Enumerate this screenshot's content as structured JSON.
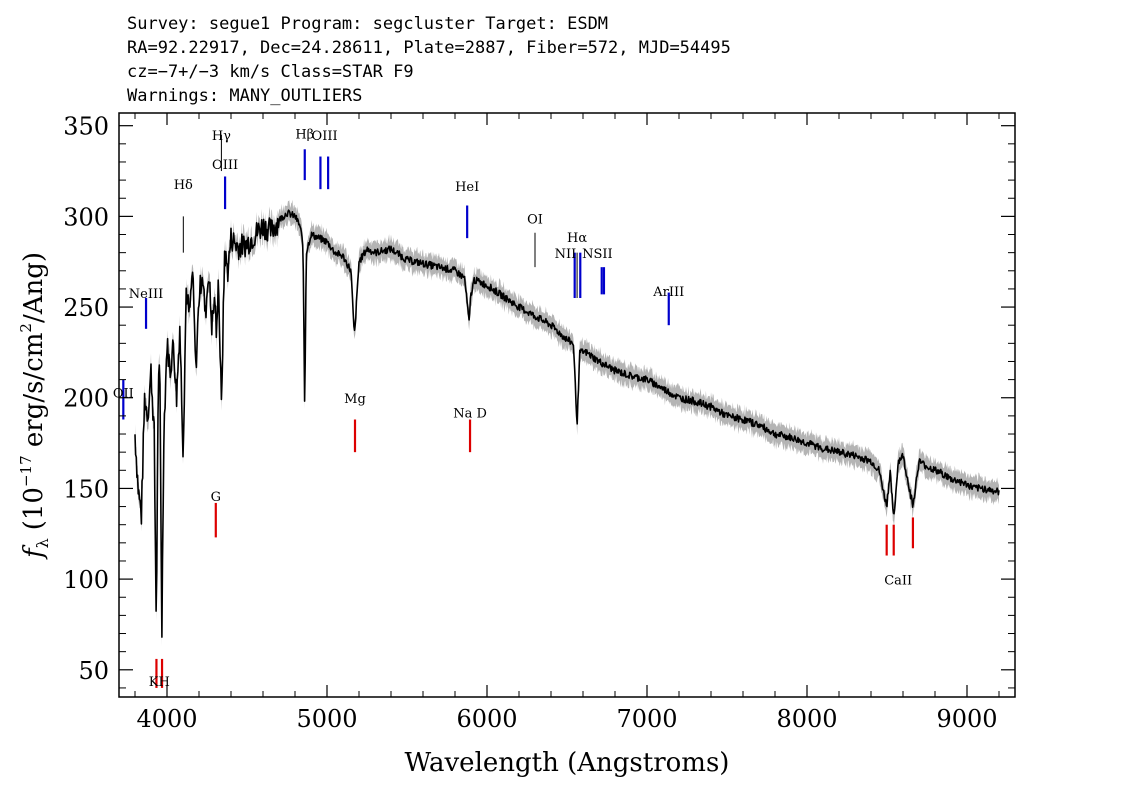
{
  "header": {
    "line1": "Survey: segue1 Program: segcluster Target: ESDM",
    "line2": "RA=92.22917, Dec=24.28611, Plate=2887, Fiber=572, MJD=54495",
    "line3": "cz=−7+/−3 km/s Class=STAR F9",
    "line4": "Warnings: MANY_OUTLIERS"
  },
  "colors": {
    "spectrum": "#000000",
    "error_band": "#b4b4b4",
    "emission_line": "#0000cc",
    "absorption_line": "#dd0000",
    "balmer_line": "#000000"
  },
  "chart_data": {
    "type": "line",
    "title": "",
    "xlabel": "Wavelength (Angstroms)",
    "ylabel": "f_λ (10^-17 erg/s/cm^2/Ang)",
    "ylabel_parts": {
      "f": "f",
      "lambda": "λ",
      "rest": "(10",
      "exp": "−17",
      "units": " erg/s/cm",
      "sq": "2",
      "tail": "/Ang)"
    },
    "xlim": [
      3700,
      9300
    ],
    "ylim": [
      35,
      357
    ],
    "xticks": [
      4000,
      5000,
      6000,
      7000,
      8000,
      9000
    ],
    "yticks": [
      50,
      100,
      150,
      200,
      250,
      300,
      350
    ],
    "series": [
      {
        "x": [
          3800,
          3820,
          3840,
          3860,
          3880,
          3900,
          3920,
          3933,
          3945,
          3955,
          3968,
          3980,
          4000,
          4020,
          4040,
          4060,
          4080,
          4101,
          4120,
          4140,
          4160,
          4180,
          4200,
          4220,
          4240,
          4260,
          4280,
          4300,
          4310,
          4320,
          4340,
          4360,
          4380,
          4400,
          4450,
          4500,
          4550,
          4600,
          4650,
          4700,
          4750,
          4800,
          4830,
          4850,
          4861,
          4870,
          4900,
          4950,
          5000,
          5050,
          5100,
          5150,
          5167,
          5173,
          5183,
          5200,
          5250,
          5300,
          5400,
          5500,
          5600,
          5700,
          5800,
          5860,
          5890,
          5896,
          5920,
          6000,
          6100,
          6200,
          6300,
          6400,
          6500,
          6540,
          6563,
          6580,
          6620,
          6700,
          6800,
          6900,
          7000,
          7100,
          7200,
          7300,
          7400,
          7500,
          7600,
          7700,
          7800,
          7900,
          8000,
          8100,
          8200,
          8300,
          8400,
          8450,
          8498,
          8520,
          8542,
          8570,
          8600,
          8662,
          8700,
          8750,
          8800,
          8850,
          8900,
          8950,
          9000,
          9050,
          9100,
          9150,
          9200
        ],
        "y": [
          180,
          150,
          135,
          200,
          190,
          215,
          180,
          75,
          205,
          215,
          72,
          180,
          230,
          215,
          230,
          200,
          240,
          170,
          260,
          245,
          270,
          215,
          255,
          270,
          245,
          270,
          240,
          255,
          230,
          270,
          195,
          280,
          270,
          288,
          283,
          285,
          290,
          295,
          292,
          298,
          302,
          300,
          295,
          285,
          190,
          280,
          290,
          288,
          286,
          280,
          278,
          270,
          240,
          235,
          250,
          275,
          282,
          280,
          282,
          276,
          274,
          272,
          270,
          266,
          240,
          255,
          265,
          262,
          256,
          250,
          245,
          240,
          232,
          230,
          185,
          225,
          225,
          220,
          215,
          212,
          210,
          205,
          200,
          198,
          195,
          190,
          188,
          185,
          180,
          178,
          175,
          172,
          170,
          168,
          165,
          160,
          140,
          160,
          132,
          165,
          168,
          140,
          165,
          162,
          160,
          158,
          155,
          154,
          152,
          150,
          150,
          149,
          148
        ]
      }
    ],
    "line_markers": [
      {
        "label": "OII",
        "wavelength": 3727,
        "kind": "emission"
      },
      {
        "label": "NeIII",
        "wavelength": 3869,
        "kind": "emission"
      },
      {
        "label": "Hδ",
        "wavelength": 4102,
        "kind": "balmer"
      },
      {
        "label": "Hγ",
        "wavelength": 4340,
        "kind": "balmer"
      },
      {
        "label": "OIII",
        "wavelength": 4363,
        "kind": "emission"
      },
      {
        "label": "Hβ",
        "wavelength": 4861,
        "kind": "emission"
      },
      {
        "label": "OIII",
        "wavelength": 4959,
        "kind": "emission"
      },
      {
        "label": "OIII",
        "wavelength": 5007,
        "kind": "emission"
      },
      {
        "label": "HeI",
        "wavelength": 5876,
        "kind": "emission"
      },
      {
        "label": "OI",
        "wavelength": 6300,
        "kind": "balmer"
      },
      {
        "label": "NII",
        "wavelength": 6548,
        "kind": "emission"
      },
      {
        "label": "Hα",
        "wavelength": 6563,
        "kind": "balmer"
      },
      {
        "label": "NII",
        "wavelength": 6583,
        "kind": "emission"
      },
      {
        "label": "SII",
        "wavelength": 6717,
        "kind": "emission"
      },
      {
        "label": "SII",
        "wavelength": 6731,
        "kind": "emission"
      },
      {
        "label": "ArIII",
        "wavelength": 7136,
        "kind": "emission"
      },
      {
        "label": "K",
        "wavelength": 3934,
        "kind": "absorption"
      },
      {
        "label": "H",
        "wavelength": 3969,
        "kind": "absorption"
      },
      {
        "label": "G",
        "wavelength": 4305,
        "kind": "absorption"
      },
      {
        "label": "Mg",
        "wavelength": 5175,
        "kind": "absorption"
      },
      {
        "label": "Na D",
        "wavelength": 5894,
        "kind": "absorption"
      },
      {
        "label": "CaII",
        "wavelength": 8498,
        "kind": "absorption"
      },
      {
        "label": "CaII",
        "wavelength": 8542,
        "kind": "absorption"
      },
      {
        "label": "CaII",
        "wavelength": 8662,
        "kind": "absorption"
      }
    ],
    "line_labels": [
      {
        "text": "OII",
        "wavelength": 3727,
        "row": "y200"
      },
      {
        "text": "NeIII",
        "wavelength": 3869,
        "row": "y255"
      },
      {
        "text": "Hδ",
        "wavelength": 4102,
        "row": "y315"
      },
      {
        "text": "Hγ",
        "wavelength": 4340,
        "row": "y342"
      },
      {
        "text": "OIII",
        "wavelength": 4363,
        "row": "y326"
      },
      {
        "text": "Hβ",
        "wavelength": 4861,
        "row": "y343"
      },
      {
        "text": "OIII",
        "wavelength": 4985,
        "row": "y342"
      },
      {
        "text": "HeI",
        "wavelength": 5876,
        "row": "y314"
      },
      {
        "text": "OI",
        "wavelength": 6300,
        "row": "y296"
      },
      {
        "text": "NII",
        "wavelength": 6490,
        "row": "y277"
      },
      {
        "text": "Hα",
        "wavelength": 6563,
        "row": "y286"
      },
      {
        "text": "NSII",
        "wavelength": 6690,
        "row": "y277"
      },
      {
        "text": "ArIII",
        "wavelength": 7136,
        "row": "y256"
      },
      {
        "text": "KH",
        "wavelength": 3952,
        "row": "y41"
      },
      {
        "text": "G",
        "wavelength": 4305,
        "row": "y143"
      },
      {
        "text": "Mg",
        "wavelength": 5175,
        "row": "y197"
      },
      {
        "text": "Na  D",
        "wavelength": 5894,
        "row": "y189"
      },
      {
        "text": "CaII",
        "wavelength": 8570,
        "row": "y97"
      }
    ]
  }
}
